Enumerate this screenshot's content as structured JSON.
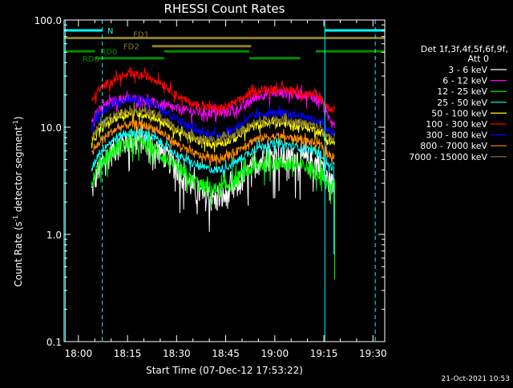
{
  "chart_data": {
    "type": "line",
    "title": "RHESSI Count Rates",
    "xlabel": "Start Time (07-Dec-12 17:53:22)",
    "ylabel_main": "Count Rate (s",
    "ylabel_sup1": "-1",
    "ylabel_mid": " detector segment",
    "ylabel_sup2": "-1",
    "ylabel_end": ")",
    "y_scale": "log",
    "ylim": [
      0.1,
      100
    ],
    "xlim_minutes": [
      -4.37,
      93.6
    ],
    "x_ticks": [
      {
        "label": "18:00",
        "minutes": 0
      },
      {
        "label": "18:15",
        "minutes": 15
      },
      {
        "label": "18:30",
        "minutes": 30
      },
      {
        "label": "18:45",
        "minutes": 45
      },
      {
        "label": "19:00",
        "minutes": 60
      },
      {
        "label": "19:15",
        "minutes": 75
      },
      {
        "label": "19:30",
        "minutes": 90
      }
    ],
    "y_ticks": [
      {
        "label": "100.0",
        "value": 100
      },
      {
        "label": "10.0",
        "value": 10
      },
      {
        "label": "1.0",
        "value": 1
      },
      {
        "label": "0.1",
        "value": 0.1
      }
    ],
    "legend_header": [
      "Det 1f,3f,4f,5f,6f,9f,",
      "Att 0"
    ],
    "legend_position": "right",
    "series": [
      {
        "name": "3 - 6 keV",
        "color": "#ffffff",
        "x": [
          4,
          6,
          9,
          12,
          15,
          18,
          21,
          24,
          27,
          30,
          34,
          38,
          42,
          45,
          48,
          51,
          54,
          57,
          60,
          63,
          66,
          69,
          72,
          74.5,
          75.5,
          77,
          78.3
        ],
        "y": [
          2.5,
          4,
          5.4,
          6.7,
          7.5,
          7.7,
          7.4,
          6.4,
          5.3,
          4.2,
          3.0,
          2.3,
          2.1,
          2.3,
          2.7,
          3.5,
          4.6,
          5.2,
          5.3,
          5.2,
          5.2,
          5.0,
          4.7,
          4.5,
          3.5,
          3.0,
          3.0
        ]
      },
      {
        "name": "6 - 12 keV",
        "color": "#ff00ff",
        "x": [
          4,
          6,
          9,
          12,
          15,
          18,
          21,
          24,
          27,
          30,
          34,
          38,
          42,
          45,
          48,
          51,
          54,
          57,
          60,
          63,
          66,
          69,
          72,
          74.5,
          75.5,
          77,
          78.3
        ],
        "y": [
          12,
          14,
          16.5,
          18,
          18.5,
          18.3,
          17.5,
          16.5,
          15.5,
          14.8,
          14.2,
          13.8,
          13.6,
          13.8,
          14.5,
          16,
          19,
          20.5,
          21,
          20.8,
          20.5,
          20,
          19,
          17.5,
          13,
          12,
          11
        ]
      },
      {
        "name": "12 - 25 keV",
        "color": "#00ff00",
        "x": [
          4,
          6,
          9,
          12,
          15,
          18,
          21,
          24,
          27,
          30,
          34,
          38,
          42,
          45,
          48,
          51,
          54,
          57,
          60,
          63,
          66,
          69,
          72,
          74.5,
          75.5,
          77,
          78.3
        ],
        "y": [
          3.0,
          4.3,
          5.6,
          6.5,
          7.0,
          7.2,
          6.8,
          6.0,
          5.0,
          4.1,
          3.3,
          2.8,
          2.6,
          2.8,
          3.2,
          3.8,
          4.3,
          4.6,
          4.7,
          4.6,
          4.5,
          4.3,
          4.0,
          3.8,
          3.0,
          2.8,
          2.8
        ]
      },
      {
        "name": "25 - 50 keV",
        "color": "#00ffff",
        "x": [
          4,
          6,
          9,
          12,
          15,
          18,
          21,
          24,
          27,
          30,
          34,
          38,
          42,
          45,
          48,
          51,
          54,
          57,
          60,
          63,
          66,
          69,
          72,
          74.5,
          75.5,
          77,
          78.3
        ],
        "y": [
          4.0,
          5.6,
          7.0,
          8.2,
          8.8,
          9.0,
          8.6,
          7.7,
          6.6,
          5.6,
          4.7,
          4.2,
          4.0,
          4.2,
          4.7,
          5.5,
          6.3,
          6.8,
          7.0,
          6.9,
          6.7,
          6.4,
          6.0,
          5.5,
          4.6,
          4.3,
          4.3
        ]
      },
      {
        "name": "50 - 100 keV",
        "color": "#ffff00",
        "x": [
          4,
          6,
          9,
          12,
          15,
          18,
          21,
          24,
          27,
          30,
          34,
          38,
          42,
          45,
          48,
          51,
          54,
          57,
          60,
          63,
          66,
          69,
          72,
          74.5,
          75.5,
          77,
          78.3
        ],
        "y": [
          7.0,
          9.0,
          11.0,
          12.5,
          13.3,
          13.5,
          13.0,
          12.0,
          10.6,
          9.2,
          8.0,
          7.3,
          7.0,
          7.3,
          8.0,
          9.2,
          10.3,
          10.9,
          11.0,
          10.8,
          10.5,
          10.1,
          9.5,
          8.8,
          7.6,
          7.2,
          7.2
        ]
      },
      {
        "name": "100 - 300 keV",
        "color": "#ff0000",
        "x": [
          4,
          6,
          9,
          12,
          15,
          18,
          21,
          24,
          27,
          30,
          34,
          38,
          42,
          45,
          48,
          51,
          54,
          57,
          60,
          63,
          66,
          69,
          72,
          74.5,
          75.5,
          77,
          78.3
        ],
        "y": [
          17,
          22,
          26,
          29,
          30.5,
          30.8,
          30,
          27.5,
          24,
          20,
          17,
          15.5,
          15,
          15.5,
          17,
          19.5,
          21.5,
          22.5,
          22.8,
          22.5,
          22,
          21,
          20,
          18.5,
          16,
          15,
          14.5
        ]
      },
      {
        "name": "300 - 800 keV",
        "color": "#0000ff",
        "x": [
          4,
          6,
          9,
          12,
          15,
          18,
          21,
          24,
          27,
          30,
          34,
          38,
          42,
          45,
          48,
          51,
          54,
          57,
          60,
          63,
          66,
          69,
          72,
          74.5,
          75.5,
          77,
          78.3
        ],
        "y": [
          10.0,
          12.5,
          15.0,
          17.0,
          18.0,
          18.2,
          17.6,
          16.0,
          14.0,
          12.0,
          10.0,
          8.8,
          8.4,
          8.7,
          9.8,
          11.5,
          12.8,
          13.4,
          13.6,
          13.4,
          13.0,
          12.5,
          11.8,
          11.0,
          9.5,
          9.0,
          9.0
        ]
      },
      {
        "name": "800 - 7000 keV",
        "color": "#ff8c00",
        "x": [
          4,
          6,
          9,
          12,
          15,
          18,
          21,
          24,
          27,
          30,
          34,
          38,
          42,
          45,
          48,
          51,
          54,
          57,
          60,
          63,
          66,
          69,
          72,
          74.5,
          75.5,
          77,
          78.3
        ],
        "y": [
          5.5,
          7.0,
          8.6,
          9.8,
          10.5,
          10.7,
          10.3,
          9.4,
          8.2,
          7.0,
          5.9,
          5.3,
          5.1,
          5.3,
          5.9,
          6.9,
          7.7,
          8.1,
          8.2,
          8.1,
          7.9,
          7.6,
          7.1,
          6.6,
          5.8,
          5.5,
          5.5
        ]
      },
      {
        "name": "7000 - 15000 keV",
        "color": "#8b7d2a",
        "x": [
          4,
          6,
          9,
          12,
          15,
          18,
          21,
          24,
          27,
          30,
          34,
          38,
          42,
          45,
          48,
          51,
          54,
          57,
          60,
          63,
          66,
          69,
          72,
          74.5,
          75.5,
          77,
          78.3
        ],
        "y": [
          8.0,
          10.0,
          12.0,
          13.5,
          14.2,
          14.4,
          14.0,
          12.9,
          11.4,
          9.8,
          8.5,
          7.8,
          7.5,
          7.8,
          8.6,
          9.9,
          11.0,
          11.6,
          11.8,
          11.6,
          11.3,
          10.9,
          10.3,
          9.6,
          8.3,
          7.9,
          7.8
        ]
      }
    ],
    "data_gaps": [
      {
        "after_minutes": 78.3,
        "drop_values": [
          0.65,
          0.38
        ]
      }
    ],
    "status_bars": [
      {
        "label": "N",
        "color": "#00ffff",
        "y_value": 80,
        "intervals": [
          [
            -4.37,
            7.3
          ],
          [
            75.3,
            93.6
          ]
        ],
        "label_minutes": 7.6
      },
      {
        "label": "FD1",
        "color": "#8b7d2a",
        "y_value": 68,
        "intervals": [
          [
            -4.37,
            93.6
          ]
        ],
        "label_minutes": 15.5
      },
      {
        "label": "FD2",
        "color": "#8b7d2a",
        "y_value": 57,
        "intervals": [
          [
            22.5,
            52.8
          ]
        ],
        "label_minutes": 12.5
      },
      {
        "label": "RD0",
        "color": "#008c00",
        "y_value": 51,
        "intervals": [
          [
            -4.37,
            5.0
          ],
          [
            26.2,
            52.2
          ],
          [
            72.5,
            93.6
          ]
        ],
        "label_minutes": 5.5
      },
      {
        "label": "RD6",
        "color": "#008c00",
        "y_value": 44,
        "intervals": [
          [
            5.0,
            26.2
          ],
          [
            52.2,
            67.8
          ]
        ],
        "label_minutes": 0
      }
    ],
    "vertical_lines": [
      {
        "minutes": -4.0,
        "color": "#00ffff",
        "style": "solid"
      },
      {
        "minutes": 7.3,
        "color": "#00ffff",
        "style": "dashed"
      },
      {
        "minutes": 75.3,
        "color": "#00ffff",
        "style": "solid"
      },
      {
        "minutes": 90.7,
        "color": "#00ffff",
        "style": "dashed"
      }
    ],
    "grid": false
  },
  "footer": {
    "timestamp": "21-Oct-2021 10:53"
  }
}
